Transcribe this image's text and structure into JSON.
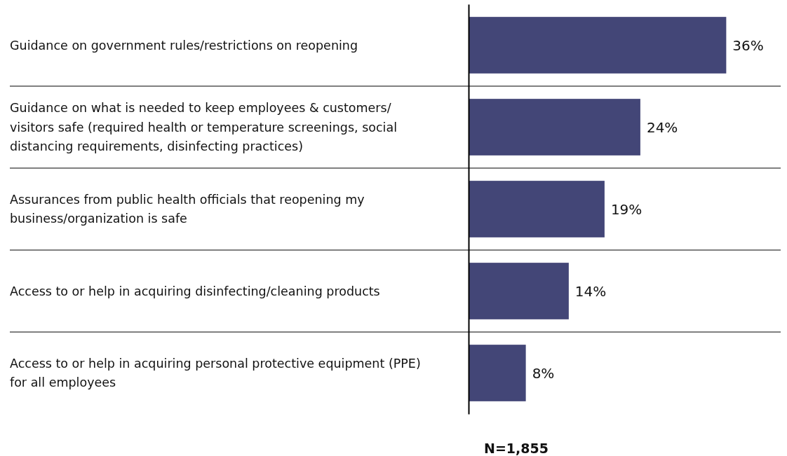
{
  "chart_data": {
    "type": "bar",
    "orientation": "horizontal",
    "categories": [
      "Guidance on government rules/restrictions on reopening",
      "Guidance on what is needed to keep employees & customers/ visitors safe (required health or temperature screenings, social distancing requirements, disinfecting practices)",
      "Assurances from public health officials that reopening my business/organization is safe",
      "Access to or help in acquiring disinfecting/cleaning products",
      "Access to or help in acquiring personal protective equipment (PPE) for all employees"
    ],
    "values": [
      36,
      24,
      19,
      14,
      8
    ],
    "color": "#434677",
    "value_labels": [
      "36%",
      "24%",
      "19%",
      "14%",
      "8%"
    ],
    "xlim": [
      0,
      44
    ],
    "tick_labels": "y",
    "grid": "y",
    "annotations": [
      "N=1,855"
    ]
  }
}
